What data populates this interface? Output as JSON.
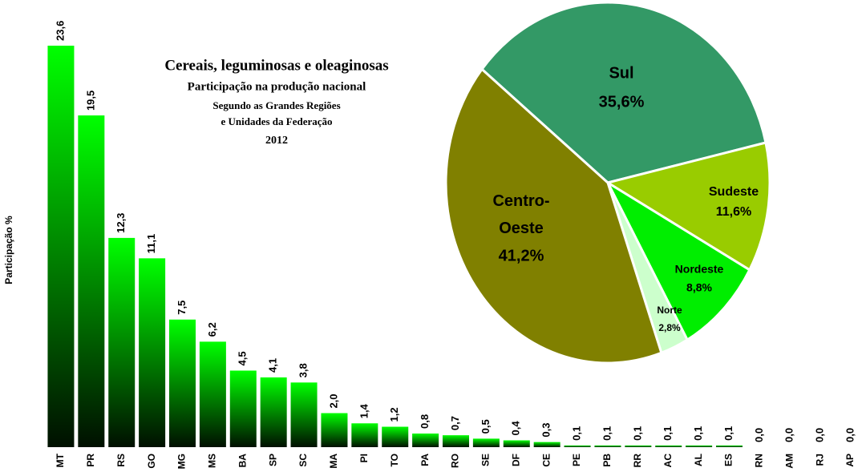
{
  "chart_data": [
    {
      "type": "bar",
      "title": "Cereais, leguminosas e oleaginosas",
      "subtitle": [
        "Participação na produção nacional",
        "Segundo as Grandes Regiões",
        "e Unidades da Federação",
        "2012"
      ],
      "y_label": "Participação %",
      "categories": [
        "MT",
        "PR",
        "RS",
        "GO",
        "MG",
        "MS",
        "BA",
        "SP",
        "SC",
        "MA",
        "PI",
        "TO",
        "PA",
        "RO",
        "SE",
        "DF",
        "CE",
        "PE",
        "PB",
        "RR",
        "AC",
        "AL",
        "ES",
        "RN",
        "AM",
        "RJ",
        "AP"
      ],
      "values": [
        23.6,
        19.5,
        12.3,
        11.1,
        7.5,
        6.2,
        4.5,
        4.1,
        3.8,
        2.0,
        1.4,
        1.2,
        0.8,
        0.7,
        0.5,
        0.4,
        0.3,
        0.1,
        0.1,
        0.1,
        0.1,
        0.1,
        0.1,
        0.0,
        0.0,
        0.0,
        0.0
      ],
      "value_labels": [
        "23,6",
        "19,5",
        "12,3",
        "11,1",
        "7,5",
        "6,2",
        "4,5",
        "4,1",
        "3,8",
        "2,0",
        "1,4",
        "1,2",
        "0,8",
        "0,7",
        "0,5",
        "0,4",
        "0,3",
        "0,1",
        "0,1",
        "0,1",
        "0,1",
        "0,1",
        "0,1",
        "0,0",
        "0,0",
        "0,0",
        "0,0"
      ],
      "color": "#00ff00",
      "ylim": [
        0,
        23.6
      ]
    },
    {
      "type": "pie",
      "categories": [
        "Sul",
        "Sudeste",
        "Nordeste",
        "Norte",
        "Centro-Oeste"
      ],
      "values": [
        35.6,
        11.6,
        8.8,
        2.8,
        41.2
      ],
      "value_labels": [
        "35,6%",
        "11,6%",
        "8,8%",
        "2,8%",
        "41,2%"
      ],
      "colors": [
        "#339966",
        "#99cc00",
        "#00ee00",
        "#ccffcc",
        "#808000"
      ]
    }
  ]
}
